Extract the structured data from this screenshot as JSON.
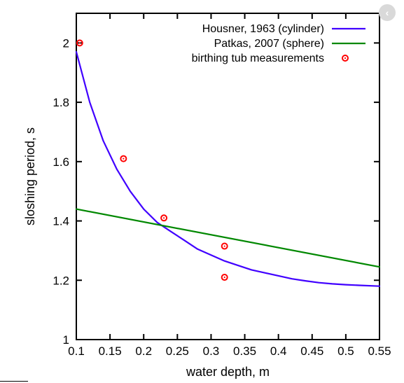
{
  "ui": {
    "close_icon": "chevron-left-icon",
    "close_glyph": "‹",
    "background": "#ffffff",
    "frame_color": "#000000"
  },
  "chart_data": {
    "type": "line",
    "title": "",
    "xlabel": "water depth, m",
    "ylabel": "sloshing period, s",
    "xlim": [
      0.1,
      0.55
    ],
    "ylim": [
      1.0,
      2.1
    ],
    "xticks": [
      0.1,
      0.15,
      0.2,
      0.25,
      0.3,
      0.35,
      0.4,
      0.45,
      0.5,
      0.55
    ],
    "xtick_labels": [
      "0.1",
      "0.15",
      "0.2",
      "0.25",
      "0.3",
      "0.35",
      "0.4",
      "0.45",
      "0.5",
      "0.55"
    ],
    "yticks": [
      1.0,
      1.2,
      1.4,
      1.6,
      1.8,
      2.0
    ],
    "ytick_labels": [
      "1",
      "1.2",
      "1.4",
      "1.6",
      "1.8",
      "2"
    ],
    "grid": false,
    "legend_position": "top-right",
    "series": [
      {
        "name": "Housner, 1963 (cylinder)",
        "kind": "line",
        "color": "#4000ff",
        "x": [
          0.1,
          0.12,
          0.14,
          0.16,
          0.18,
          0.2,
          0.22,
          0.24,
          0.26,
          0.28,
          0.3,
          0.32,
          0.34,
          0.36,
          0.38,
          0.4,
          0.42,
          0.44,
          0.46,
          0.48,
          0.5,
          0.52,
          0.55
        ],
        "y": [
          1.97,
          1.8,
          1.67,
          1.575,
          1.5,
          1.44,
          1.395,
          1.365,
          1.335,
          1.305,
          1.285,
          1.265,
          1.25,
          1.235,
          1.225,
          1.215,
          1.205,
          1.198,
          1.192,
          1.188,
          1.185,
          1.183,
          1.18
        ]
      },
      {
        "name": "Patkas, 2007 (sphere)",
        "kind": "line",
        "color": "#008800",
        "x": [
          0.1,
          0.55
        ],
        "y": [
          1.44,
          1.245
        ]
      },
      {
        "name": "birthing tub measurements",
        "kind": "points",
        "color": "#ff0000",
        "x": [
          0.105,
          0.17,
          0.23,
          0.32,
          0.32
        ],
        "y": [
          2.0,
          1.61,
          1.41,
          1.315,
          1.21
        ]
      }
    ]
  }
}
